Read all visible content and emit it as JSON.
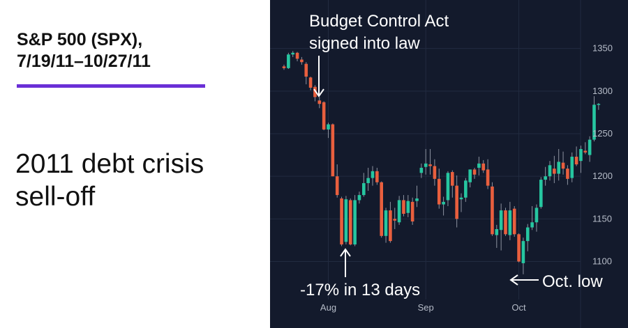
{
  "header": {
    "title_line1": "S&P 500 (SPX),",
    "title_line2": "7/19/11–10/27/11",
    "subtitle_line1": "2011 debt crisis",
    "subtitle_line2": "sell-off"
  },
  "colors": {
    "up": "#26c6a0",
    "down": "#e95f3e",
    "accent": "#6a2fd6",
    "background": "#131a2c",
    "grid": "#222b40"
  },
  "chart_data": {
    "type": "candlestick",
    "ylim": [
      1075,
      1375
    ],
    "yticks": [
      1100,
      1150,
      1200,
      1250,
      1300,
      1350
    ],
    "xticks": [
      {
        "label": "Aug",
        "index": 10
      },
      {
        "label": "Sep",
        "index": 32
      },
      {
        "label": "Oct",
        "index": 53
      }
    ],
    "grid": true,
    "candles": [
      [
        1329,
        1331,
        1325,
        1327
      ],
      [
        1327,
        1345,
        1326,
        1343
      ],
      [
        1343,
        1347,
        1340,
        1345
      ],
      [
        1345,
        1346,
        1335,
        1338
      ],
      [
        1337,
        1340,
        1331,
        1334
      ],
      [
        1332,
        1334,
        1308,
        1317
      ],
      [
        1316,
        1317,
        1301,
        1304
      ],
      [
        1305,
        1307,
        1288,
        1293
      ],
      [
        1289,
        1293,
        1280,
        1285
      ],
      [
        1287,
        1288,
        1254,
        1255
      ],
      [
        1255,
        1263,
        1245,
        1261
      ],
      [
        1261,
        1262,
        1200,
        1200
      ],
      [
        1200,
        1214,
        1175,
        1178
      ],
      [
        1174,
        1176,
        1118,
        1120
      ],
      [
        1123,
        1177,
        1120,
        1173
      ],
      [
        1172,
        1174,
        1119,
        1120
      ],
      [
        1120,
        1178,
        1118,
        1172
      ],
      [
        1172,
        1182,
        1168,
        1178
      ],
      [
        1178,
        1204,
        1176,
        1192
      ],
      [
        1192,
        1210,
        1183,
        1198
      ],
      [
        1198,
        1212,
        1189,
        1206
      ],
      [
        1206,
        1210,
        1190,
        1193
      ],
      [
        1193,
        1194,
        1128,
        1130
      ],
      [
        1130,
        1163,
        1122,
        1160
      ],
      [
        1160,
        1170,
        1122,
        1124
      ],
      [
        1150,
        1163,
        1138,
        1148
      ],
      [
        1146,
        1177,
        1143,
        1172
      ],
      [
        1172,
        1178,
        1153,
        1156
      ],
      [
        1157,
        1178,
        1152,
        1171
      ],
      [
        1170,
        1175,
        1143,
        1147
      ],
      [
        1171,
        1189,
        1164,
        1174
      ],
      [
        1204,
        1215,
        1198,
        1210
      ],
      [
        1211,
        1232,
        1202,
        1215
      ],
      [
        1214,
        1232,
        1202,
        1212
      ],
      [
        1212,
        1220,
        1189,
        1197
      ],
      [
        1197,
        1209,
        1162,
        1167
      ],
      [
        1167,
        1176,
        1154,
        1170
      ],
      [
        1172,
        1206,
        1165,
        1204
      ],
      [
        1205,
        1207,
        1175,
        1189
      ],
      [
        1189,
        1201,
        1140,
        1150
      ],
      [
        1173,
        1180,
        1158,
        1175
      ],
      [
        1175,
        1198,
        1170,
        1195
      ],
      [
        1193,
        1208,
        1187,
        1208
      ],
      [
        1208,
        1210,
        1197,
        1202
      ],
      [
        1210,
        1223,
        1201,
        1215
      ],
      [
        1215,
        1219,
        1204,
        1207
      ],
      [
        1208,
        1220,
        1185,
        1189
      ],
      [
        1188,
        1193,
        1130,
        1132
      ],
      [
        1131,
        1143,
        1116,
        1138
      ],
      [
        1137,
        1168,
        1113,
        1160
      ],
      [
        1160,
        1163,
        1130,
        1132
      ],
      [
        1131,
        1170,
        1125,
        1160
      ],
      [
        1162,
        1165,
        1129,
        1132
      ],
      [
        1132,
        1133,
        1099,
        1100
      ],
      [
        1098,
        1128,
        1085,
        1124
      ],
      [
        1124,
        1144,
        1112,
        1140
      ],
      [
        1140,
        1165,
        1137,
        1146
      ],
      [
        1146,
        1167,
        1135,
        1163
      ],
      [
        1164,
        1199,
        1162,
        1196
      ],
      [
        1196,
        1211,
        1189,
        1200
      ],
      [
        1200,
        1218,
        1195,
        1213
      ],
      [
        1209,
        1224,
        1192,
        1203
      ],
      [
        1203,
        1232,
        1195,
        1217
      ],
      [
        1216,
        1229,
        1202,
        1209
      ],
      [
        1209,
        1213,
        1190,
        1197
      ],
      [
        1198,
        1228,
        1193,
        1223
      ],
      [
        1223,
        1235,
        1212,
        1214
      ],
      [
        1218,
        1236,
        1204,
        1232
      ],
      [
        1230,
        1240,
        1226,
        1228
      ],
      [
        1225,
        1247,
        1217,
        1243
      ],
      [
        1243,
        1294,
        1241,
        1284
      ],
      [
        1284,
        1286,
        1278,
        1285
      ]
    ],
    "annotations": [
      {
        "text_line1": "Budget Control Act",
        "text_line2": "signed into law",
        "index": 7
      },
      {
        "text": "-17% in 13 days",
        "index": 13
      },
      {
        "text": "Oct. low",
        "index": 53
      }
    ]
  }
}
